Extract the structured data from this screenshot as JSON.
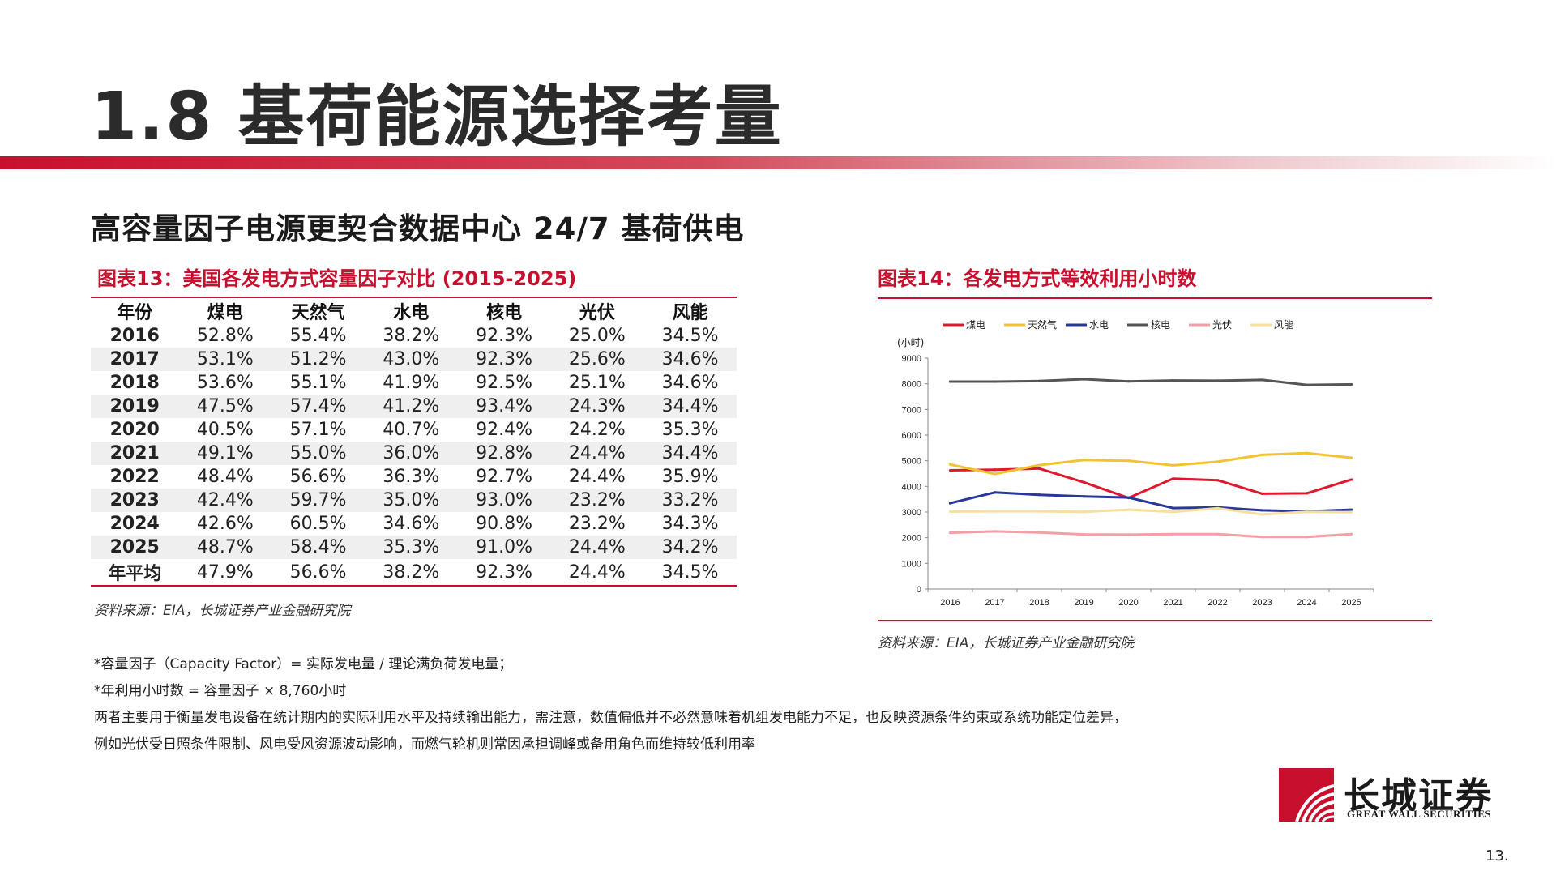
{
  "title": "1.8 基荷能源选择考量",
  "subtitle": "高容量因子电源更契合数据中心 24/7 基荷供电",
  "fig13": {
    "title": "图表13：美国各发电方式容量因子对比 (2015-2025)",
    "headers": [
      "年份",
      "煤电",
      "天然气",
      "水电",
      "核电",
      "光伏",
      "风能"
    ],
    "rows": [
      [
        "2016",
        "52.8%",
        "55.4%",
        "38.2%",
        "92.3%",
        "25.0%",
        "34.5%"
      ],
      [
        "2017",
        "53.1%",
        "51.2%",
        "43.0%",
        "92.3%",
        "25.6%",
        "34.6%"
      ],
      [
        "2018",
        "53.6%",
        "55.1%",
        "41.9%",
        "92.5%",
        "25.1%",
        "34.6%"
      ],
      [
        "2019",
        "47.5%",
        "57.4%",
        "41.2%",
        "93.4%",
        "24.3%",
        "34.4%"
      ],
      [
        "2020",
        "40.5%",
        "57.1%",
        "40.7%",
        "92.4%",
        "24.2%",
        "35.3%"
      ],
      [
        "2021",
        "49.1%",
        "55.0%",
        "36.0%",
        "92.8%",
        "24.4%",
        "34.4%"
      ],
      [
        "2022",
        "48.4%",
        "56.6%",
        "36.3%",
        "92.7%",
        "24.4%",
        "35.9%"
      ],
      [
        "2023",
        "42.4%",
        "59.7%",
        "35.0%",
        "93.0%",
        "23.2%",
        "33.2%"
      ],
      [
        "2024",
        "42.6%",
        "60.5%",
        "34.6%",
        "90.8%",
        "23.2%",
        "34.3%"
      ],
      [
        "2025",
        "48.7%",
        "58.4%",
        "35.3%",
        "91.0%",
        "24.4%",
        "34.2%"
      ],
      [
        "年平均",
        "47.9%",
        "56.6%",
        "38.2%",
        "92.3%",
        "24.4%",
        "34.5%"
      ]
    ],
    "source": "资料来源：EIA，长城证券产业金融研究院"
  },
  "fig14": {
    "title": "图表14：各发电方式等效利用小时数",
    "source": "资料来源：EIA，长城证券产业金融研究院"
  },
  "chart_data": {
    "type": "line",
    "ylabel": "(小时)",
    "ylim": [
      0,
      9000
    ],
    "yticks": [
      0,
      1000,
      2000,
      3000,
      4000,
      5000,
      6000,
      7000,
      8000,
      9000
    ],
    "categories": [
      "2016",
      "2017",
      "2018",
      "2019",
      "2020",
      "2021",
      "2022",
      "2023",
      "2024",
      "2025"
    ],
    "legend_position": "top",
    "grid": false,
    "series": [
      {
        "name": "煤电",
        "color": "#e0182d",
        "values": [
          4625,
          4650,
          4695,
          4160,
          3550,
          4300,
          4240,
          3715,
          3730,
          4265
        ]
      },
      {
        "name": "天然气",
        "color": "#f2c330",
        "values": [
          4855,
          4485,
          4830,
          5030,
          5000,
          4820,
          4960,
          5230,
          5300,
          5115
        ]
      },
      {
        "name": "水电",
        "color": "#27389a",
        "values": [
          3345,
          3765,
          3670,
          3610,
          3565,
          3155,
          3180,
          3065,
          3030,
          3090
        ]
      },
      {
        "name": "核电",
        "color": "#555555",
        "values": [
          8085,
          8085,
          8105,
          8180,
          8095,
          8130,
          8120,
          8150,
          7955,
          7975
        ]
      },
      {
        "name": "光伏",
        "color": "#f0a0a6",
        "values": [
          2190,
          2245,
          2200,
          2130,
          2120,
          2140,
          2140,
          2030,
          2030,
          2140
        ]
      },
      {
        "name": "风能",
        "color": "#f8dfa0",
        "values": [
          3020,
          3030,
          3030,
          3010,
          3090,
          3010,
          3145,
          2910,
          3005,
          2995
        ]
      }
    ]
  },
  "notes": [
    "*容量因子（Capacity Factor）= 实际发电量 / 理论满负荷发电量；",
    "*年利用小时数 = 容量因子 × 8,760小时",
    "两者主要用于衡量发电设备在统计期内的实际利用水平及持续输出能力，需注意，数值偏低并不必然意味着机组发电能力不足，也反映资源条件约束或系统功能定位差异，",
    "例如光伏受日照条件限制、风电受风资源波动影响，而燃气轮机则常因承担调峰或备用角色而维持较低利用率"
  ],
  "logo": {
    "cn": "长城证券",
    "en": "GREAT WALL SECURITIES"
  },
  "page_number": "13."
}
